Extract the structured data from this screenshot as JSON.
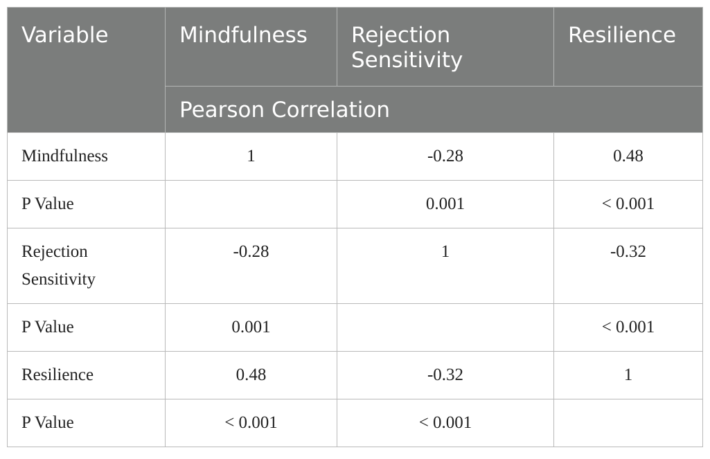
{
  "table": {
    "headers": {
      "variable": "Variable",
      "mindfulness": "Mindfulness",
      "rejection_sensitivity": "Rejection Sensitivity",
      "resilience": "Resilience",
      "pearson": "Pearson Correlation"
    },
    "rows": [
      {
        "label": "Mindfulness",
        "c1": "1",
        "c2": "-0.28",
        "c3": "0.48"
      },
      {
        "label": "P Value",
        "c1": "",
        "c2": "0.001",
        "c3": "< 0.001"
      },
      {
        "label": "Rejection Sensitivity",
        "c1": "-0.28",
        "c2": "1",
        "c3": "-0.32"
      },
      {
        "label": "P Value",
        "c1": "0.001",
        "c2": "",
        "c3": "< 0.001"
      },
      {
        "label": "Resilience",
        "c1": "0.48",
        "c2": "-0.32",
        "c3": "1"
      },
      {
        "label": "P Value",
        "c1": "< 0.001",
        "c2": "< 0.001",
        "c3": ""
      }
    ]
  }
}
